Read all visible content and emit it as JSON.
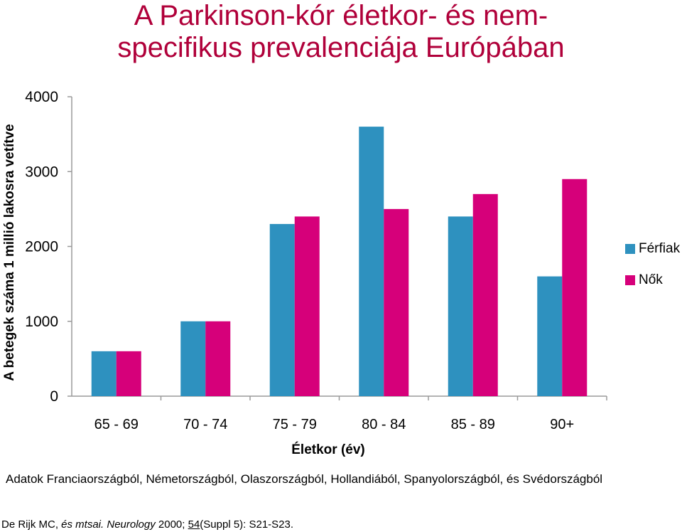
{
  "title_line1": "A Parkinson-kór életkor- és nem-",
  "title_line2": "specifikus prevalenciája Európában",
  "chart_data": {
    "type": "bar",
    "categories": [
      "65 - 69",
      "70 - 74",
      "75 - 79",
      "80 - 84",
      "85 - 89",
      "90+"
    ],
    "series": [
      {
        "name": "Férfiak",
        "color": "#2e91bf",
        "values": [
          600,
          1000,
          2300,
          3600,
          2400,
          1600
        ]
      },
      {
        "name": "Nők",
        "color": "#d6007a",
        "values": [
          600,
          1000,
          2400,
          2500,
          2700,
          2900
        ]
      }
    ],
    "ylim": [
      0,
      4000
    ],
    "yticks": [
      "0",
      "1000",
      "2000",
      "3000",
      "4000"
    ],
    "xlabel": "Életkor (év)",
    "ylabel": "A betegek száma 1 millió lakosra vetítve",
    "legend_position": "right",
    "grid": false
  },
  "note": "Adatok Franciaországból, Németországból, Olaszországból, Hollandiából, Spanyolországból, és Svédországból",
  "citation": {
    "authors": "De Rijk MC, ",
    "etal": "és mtsai.",
    "journal": "Neurology",
    "year": " 2000; ",
    "volume": "54",
    "rest": "(Suppl 5): S21-S23."
  }
}
